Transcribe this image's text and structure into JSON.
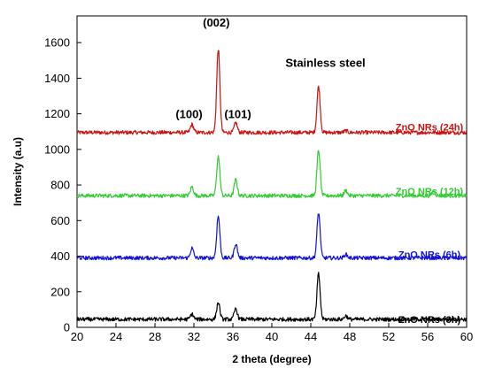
{
  "chart_data": {
    "type": "line",
    "title": "",
    "xlabel": "2 theta (degree)",
    "ylabel": "Intensity (a.u)",
    "xlim": [
      20,
      60
    ],
    "ylim": [
      0,
      1750
    ],
    "xticks": [
      20,
      24,
      28,
      32,
      36,
      40,
      44,
      48,
      52,
      56,
      60
    ],
    "yticks": [
      0,
      200,
      400,
      600,
      800,
      1000,
      1200,
      1400,
      1600
    ],
    "grid": false,
    "legend": "none",
    "annotations": [
      {
        "text": "(100)",
        "x": 31.5,
        "y": 1175
      },
      {
        "text": "(002)",
        "x": 34.3,
        "y": 1690
      },
      {
        "text": "(101)",
        "x": 36.5,
        "y": 1175
      },
      {
        "text": "Stainless steel",
        "x": 45.5,
        "y": 1465
      }
    ],
    "series": [
      {
        "name": "ZnO NRs (24h)",
        "color": "#cc1111",
        "baseline": 1095,
        "peaks": [
          [
            31.8,
            1140
          ],
          [
            34.5,
            1565
          ],
          [
            36.3,
            1150
          ],
          [
            44.8,
            1355
          ],
          [
            47.6,
            1105
          ]
        ]
      },
      {
        "name": "ZnO NRs (12h)",
        "color": "#33cc33",
        "baseline": 740,
        "peaks": [
          [
            31.8,
            790
          ],
          [
            34.5,
            960
          ],
          [
            36.3,
            830
          ],
          [
            44.8,
            995
          ],
          [
            47.6,
            770
          ],
          [
            56.6,
            765
          ]
        ]
      },
      {
        "name": "ZnO NRs (6h)",
        "color": "#1111dd",
        "baseline": 390,
        "peaks": [
          [
            31.8,
            445
          ],
          [
            34.5,
            625
          ],
          [
            36.3,
            470
          ],
          [
            44.8,
            645
          ],
          [
            47.6,
            410
          ]
        ]
      },
      {
        "name": "ZnO NRs (3h)",
        "color": "#000000",
        "baseline": 45,
        "peaks": [
          [
            31.8,
            75
          ],
          [
            34.5,
            140
          ],
          [
            36.3,
            105
          ],
          [
            44.8,
            300
          ],
          [
            47.6,
            65
          ]
        ]
      }
    ]
  }
}
